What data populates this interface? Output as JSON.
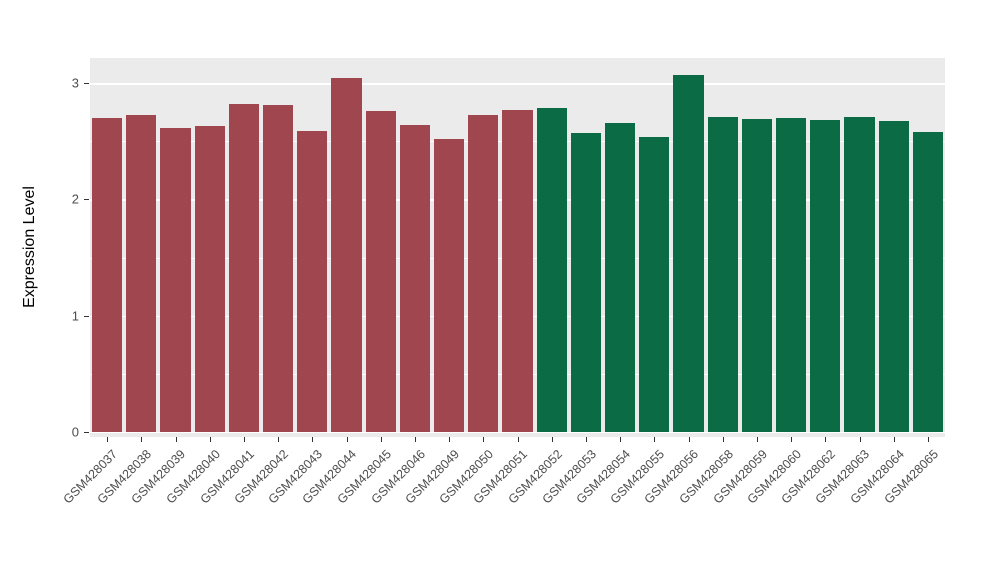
{
  "chart_data": {
    "type": "bar",
    "title": "",
    "xlabel": "",
    "ylabel": "Expression Level",
    "ylim": [
      0,
      3.216
    ],
    "yticks": [
      0,
      1,
      2,
      3
    ],
    "minor_gridlines": [
      0.5,
      1.5,
      2.5
    ],
    "legend": "none",
    "grid": true,
    "panel_background": "#EBEBEB",
    "gridline_color": "#FFFFFF",
    "group_colors": {
      "group1": "#A0464F",
      "group2": "#0B6B45"
    },
    "categories": [
      "GSM428037",
      "GSM428038",
      "GSM428039",
      "GSM428040",
      "GSM428041",
      "GSM428042",
      "GSM428043",
      "GSM428044",
      "GSM428045",
      "GSM428046",
      "GSM428049",
      "GSM428050",
      "GSM428051",
      "GSM428052",
      "GSM428053",
      "GSM428054",
      "GSM428055",
      "GSM428056",
      "GSM428058",
      "GSM428059",
      "GSM428060",
      "GSM428062",
      "GSM428063",
      "GSM428064",
      "GSM428065"
    ],
    "values": [
      2.7,
      2.73,
      2.61,
      2.63,
      2.82,
      2.81,
      2.59,
      3.04,
      2.76,
      2.64,
      2.52,
      2.73,
      2.77,
      2.79,
      2.57,
      2.66,
      2.54,
      3.07,
      2.71,
      2.69,
      2.7,
      2.68,
      2.71,
      2.67,
      2.58
    ],
    "bar_colors": [
      "#A0464F",
      "#A0464F",
      "#A0464F",
      "#A0464F",
      "#A0464F",
      "#A0464F",
      "#A0464F",
      "#A0464F",
      "#A0464F",
      "#A0464F",
      "#A0464F",
      "#A0464F",
      "#A0464F",
      "#0B6B45",
      "#0B6B45",
      "#0B6B45",
      "#0B6B45",
      "#0B6B45",
      "#0B6B45",
      "#0B6B45",
      "#0B6B45",
      "#0B6B45",
      "#0B6B45",
      "#0B6B45",
      "#0B6B45"
    ]
  }
}
